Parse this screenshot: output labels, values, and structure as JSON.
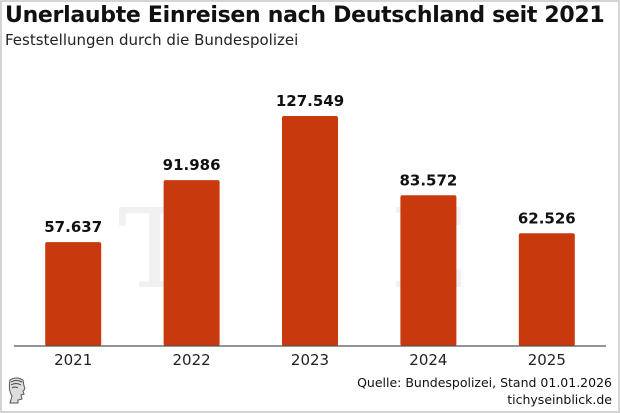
{
  "title": "Unerlaubte Einreisen nach Deutschland seit 2021",
  "subtitle": "Feststellungen durch die Bundespolizei",
  "source_line": "Quelle: Bundespolizei, Stand 01.01.2026",
  "site_line": "tichyseinblick.de",
  "watermark_letters": [
    "T",
    "E"
  ],
  "colors": {
    "bar": "#c83a0e",
    "axis": "#555555",
    "label": "#111111"
  },
  "chart_data": {
    "type": "bar",
    "title": "Unerlaubte Einreisen nach Deutschland seit 2021",
    "subtitle": "Feststellungen durch die Bundespolizei",
    "xlabel": "",
    "ylabel": "",
    "categories": [
      "2021",
      "2022",
      "2023",
      "2024",
      "2025"
    ],
    "values": [
      57637,
      91986,
      127549,
      83572,
      62526
    ],
    "value_labels": [
      "57.637",
      "91.986",
      "127.549",
      "83.572",
      "62.526"
    ],
    "ylim": [
      0,
      140000
    ],
    "grid": false,
    "legend": "none"
  }
}
